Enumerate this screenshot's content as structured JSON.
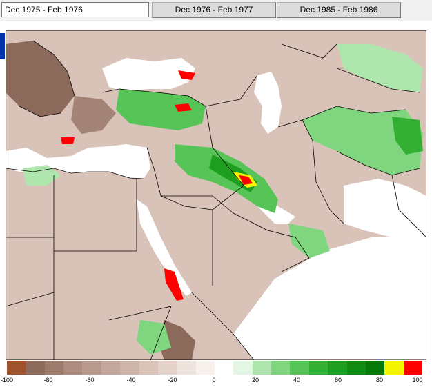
{
  "toolbar": {
    "period_input_value": "Dec 1975 - Feb 1976",
    "buttons": [
      "Dec 1976 - Feb 1977",
      "Dec 1985 - Feb 1986"
    ]
  },
  "map": {
    "icon": "precipitation-anomaly-map",
    "colors": {
      "land_base": "#d9c2b8",
      "sea": "#ffffff",
      "border": "#000000"
    }
  },
  "legend": {
    "tick_labels": [
      "-100",
      "-80",
      "-60",
      "-40",
      "-20",
      "0",
      "20",
      "40",
      "60",
      "80",
      "100"
    ],
    "colors": [
      "#a0522d",
      "#8b6a5c",
      "#9c7a6c",
      "#ad8b7e",
      "#b99a8e",
      "#c4a89d",
      "#cfb6ab",
      "#dac4ba",
      "#e4d3cb",
      "#efe3dd",
      "#f7f0ed",
      "#ffffff",
      "#e4f5e4",
      "#aee6ae",
      "#7fd67f",
      "#56c456",
      "#33b033",
      "#1e9e1e",
      "#108a10",
      "#057805",
      "#f5f500",
      "#ff0000"
    ]
  }
}
